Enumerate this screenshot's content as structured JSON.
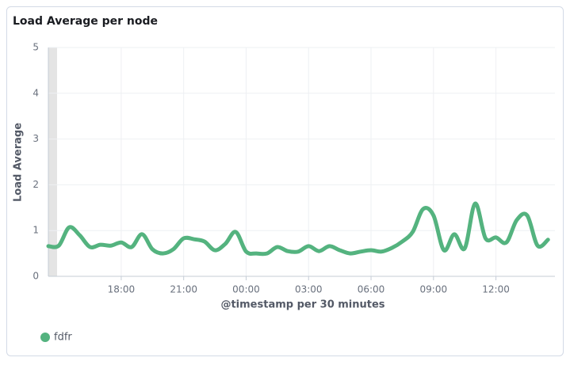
{
  "chart_data": {
    "type": "line",
    "title": "Load Average per node",
    "x_label": "@timestamp per 30 minutes",
    "y_label": "Load Average",
    "x": [
      "14:30",
      "15:00",
      "15:30",
      "16:00",
      "16:30",
      "17:00",
      "17:30",
      "18:00",
      "18:30",
      "19:00",
      "19:30",
      "20:00",
      "20:30",
      "21:00",
      "21:30",
      "22:00",
      "22:30",
      "23:00",
      "23:30",
      "00:00",
      "00:30",
      "01:00",
      "01:30",
      "02:00",
      "02:30",
      "03:00",
      "03:30",
      "04:00",
      "04:30",
      "05:00",
      "05:30",
      "06:00",
      "06:30",
      "07:00",
      "07:30",
      "08:00",
      "08:30",
      "09:00",
      "09:30",
      "10:00",
      "10:30",
      "11:00",
      "11:30",
      "12:00",
      "12:30",
      "13:00",
      "13:30",
      "14:00",
      "14:30"
    ],
    "xticks": [
      "18:00",
      "21:00",
      "00:00",
      "03:00",
      "06:00",
      "09:00",
      "12:00"
    ],
    "series": [
      {
        "name": "fdfr",
        "color": "#54b37f",
        "values": [
          0.66,
          0.67,
          1.07,
          0.9,
          0.64,
          0.69,
          0.67,
          0.74,
          0.64,
          0.92,
          0.59,
          0.5,
          0.59,
          0.83,
          0.81,
          0.76,
          0.57,
          0.71,
          0.97,
          0.54,
          0.5,
          0.5,
          0.64,
          0.55,
          0.54,
          0.66,
          0.55,
          0.66,
          0.57,
          0.5,
          0.54,
          0.57,
          0.54,
          0.62,
          0.76,
          0.97,
          1.47,
          1.33,
          0.57,
          0.92,
          0.61,
          1.59,
          0.83,
          0.85,
          0.74,
          1.23,
          1.33,
          0.67,
          0.8
        ]
      }
    ],
    "ylim": [
      0,
      5
    ],
    "yticks": [
      0,
      1,
      2,
      3,
      4,
      5
    ],
    "grid": true
  }
}
